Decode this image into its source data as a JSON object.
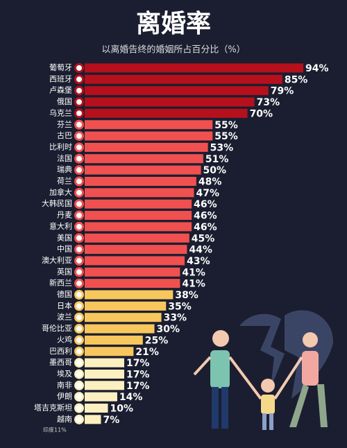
{
  "chart_data": {
    "type": "bar",
    "orientation": "horizontal",
    "title": "离婚率",
    "subtitle": "以离婚告终的婚姻所占百分比（%）",
    "categories": [
      "葡萄牙",
      "西班牙",
      "卢森堡",
      "俄国",
      "乌克兰",
      "芬兰",
      "古巴",
      "比利时",
      "法国",
      "瑞典",
      "荷兰",
      "加拿大",
      "大韩民国",
      "丹麦",
      "意大利",
      "美国",
      "中国",
      "澳大利亚",
      "英国",
      "新西兰",
      "德国",
      "日本",
      "波兰",
      "哥伦比亚",
      "火鸡",
      "巴西利",
      "墨西哥",
      "埃及",
      "南非",
      "伊朗",
      "塔吉克斯坦",
      "越南"
    ],
    "values": [
      94,
      85,
      79,
      73,
      70,
      55,
      55,
      53,
      51,
      50,
      48,
      47,
      46,
      46,
      46,
      45,
      44,
      43,
      41,
      41,
      38,
      35,
      33,
      30,
      25,
      21,
      17,
      17,
      17,
      14,
      10,
      7
    ],
    "value_labels": [
      "94%",
      "85%",
      "79%",
      "73%",
      "70%",
      "55%",
      "55%",
      "53%",
      "51%",
      "50%",
      "48%",
      "47%",
      "46%",
      "46%",
      "46%",
      "45%",
      "44%",
      "43%",
      "41%",
      "41%",
      "38%",
      "35%",
      "33%",
      "30%",
      "25%",
      "21%",
      "17%",
      "17%",
      "17%",
      "14%",
      "10%",
      "7%"
    ],
    "colors": [
      "#b5101c",
      "#b5101c",
      "#b5101c",
      "#b5101c",
      "#b5101c",
      "#f0504f",
      "#f0504f",
      "#f0504f",
      "#f0504f",
      "#f0504f",
      "#f0504f",
      "#f0504f",
      "#f0504f",
      "#f0504f",
      "#f0504f",
      "#f0504f",
      "#f0504f",
      "#f0504f",
      "#f0504f",
      "#f0504f",
      "#f7c75e",
      "#f7c75e",
      "#f7c75e",
      "#f7c75e",
      "#f7c75e",
      "#f7c75e",
      "#fdf0c0",
      "#fdf0c0",
      "#fdf0c0",
      "#fdf0c0",
      "#fdf0c0",
      "#fdf0c0"
    ],
    "annotation": "印度11%"
  }
}
